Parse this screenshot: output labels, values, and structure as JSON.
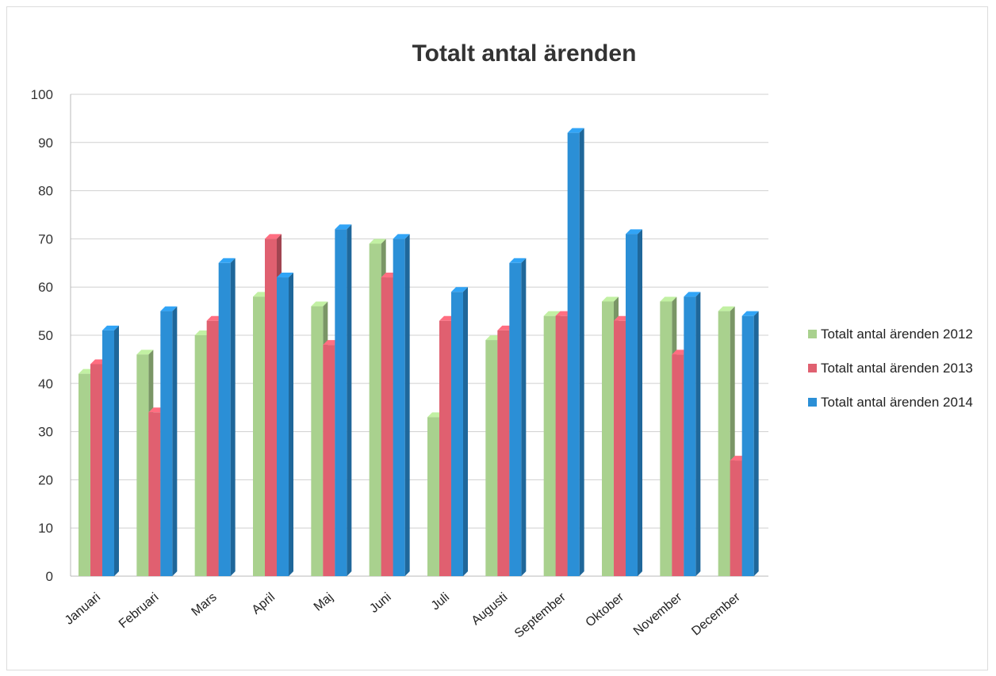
{
  "chart_data": {
    "type": "bar",
    "title": "Totalt antal ärenden",
    "xlabel": "",
    "ylabel": "",
    "ylim": [
      0,
      100
    ],
    "yticks": [
      0,
      10,
      20,
      30,
      40,
      50,
      60,
      70,
      80,
      90,
      100
    ],
    "grid": true,
    "legend_position": "right",
    "categories": [
      "Januari",
      "Februari",
      "Mars",
      "April",
      "Maj",
      "Juni",
      "Juli",
      "Augusti",
      "September",
      "Oktober",
      "November",
      "December"
    ],
    "series": [
      {
        "name": "Totalt antal ärenden 2012",
        "color": "#a9d18e",
        "values": [
          42,
          46,
          50,
          58,
          56,
          69,
          33,
          49,
          54,
          57,
          57,
          55
        ]
      },
      {
        "name": "Totalt antal ärenden 2013",
        "color": "#e06070",
        "values": [
          44,
          34,
          53,
          70,
          48,
          62,
          53,
          51,
          54,
          53,
          46,
          24
        ]
      },
      {
        "name": "Totalt antal ärenden 2014",
        "color": "#2b8fd6",
        "values": [
          51,
          55,
          65,
          62,
          72,
          70,
          59,
          65,
          92,
          71,
          58,
          54
        ]
      }
    ]
  }
}
